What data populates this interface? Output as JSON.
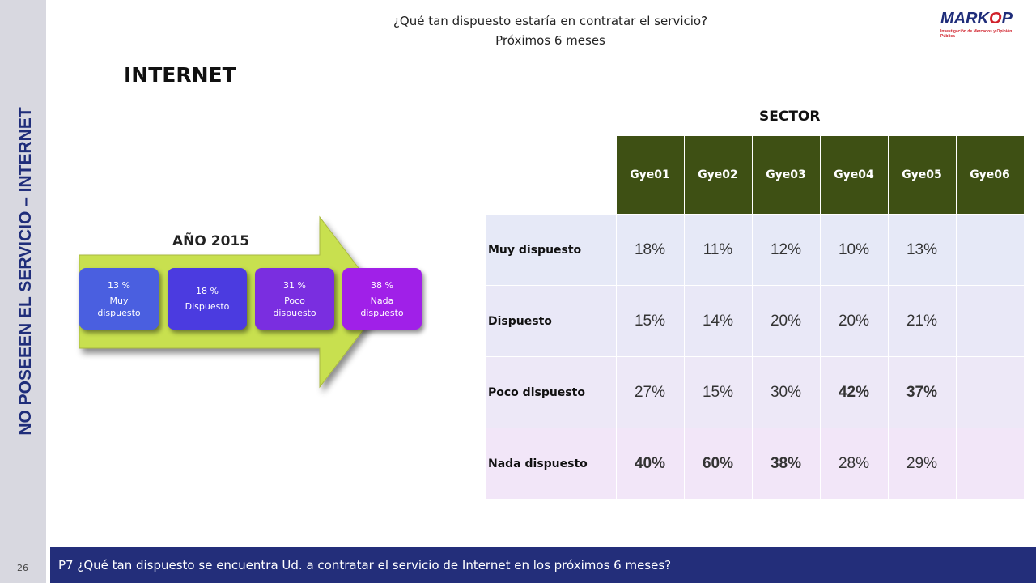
{
  "side": {
    "label": "NO POSEEEN EL SERVICIO – INTERNET"
  },
  "header": {
    "question_line1": "¿Qué tan dispuesto estaría en contratar el servicio?",
    "question_line2": "Próximos 6 meses"
  },
  "logo": {
    "name_part1": "MARK",
    "name_part2": "O",
    "name_part3": "P",
    "tagline": "Investigación de Mercados y Opinión Pública"
  },
  "title": "INTERNET",
  "year_section": {
    "label": "AÑO 2015",
    "steps": [
      {
        "pct": "13 %",
        "label": "Muy dispuesto",
        "color": "#4a5fe0"
      },
      {
        "pct": "18 %",
        "label": "Dispuesto",
        "color": "#4b3be0"
      },
      {
        "pct": "31 %",
        "label": "Poco dispuesto",
        "color": "#7a2ee0"
      },
      {
        "pct": "38 %",
        "label": "Nada dispuesto",
        "color": "#a020e8"
      }
    ],
    "arrow_color": "#c8e050"
  },
  "sector": {
    "title": "SECTOR",
    "columns": [
      "Gye01",
      "Gye02",
      "Gye03",
      "Gye04",
      "Gye05",
      "Gye06"
    ],
    "rows": [
      {
        "label": "Muy dispuesto",
        "values": [
          "18%",
          "11%",
          "12%",
          "10%",
          "13%",
          ""
        ],
        "bold": [
          false,
          false,
          false,
          false,
          false,
          false
        ]
      },
      {
        "label": "Dispuesto",
        "values": [
          "15%",
          "14%",
          "20%",
          "20%",
          "21%",
          ""
        ],
        "bold": [
          false,
          false,
          false,
          false,
          false,
          false
        ]
      },
      {
        "label": "Poco dispuesto",
        "values": [
          "27%",
          "15%",
          "30%",
          "42%",
          "37%",
          ""
        ],
        "bold": [
          false,
          false,
          false,
          true,
          true,
          false
        ]
      },
      {
        "label": "Nada dispuesto",
        "values": [
          "40%",
          "60%",
          "38%",
          "28%",
          "29%",
          ""
        ],
        "bold": [
          true,
          true,
          true,
          false,
          false,
          false
        ]
      }
    ],
    "row_colors": [
      "#e6e9f7",
      "#e9e8f7",
      "#ede8f7",
      "#f2e6f8"
    ],
    "header_color": "#3e5014"
  },
  "footer": {
    "question": "P7 ¿Qué tan dispuesto se encuentra Ud. a contratar el servicio de Internet en los próximos 6 meses?",
    "page_number": "26"
  }
}
